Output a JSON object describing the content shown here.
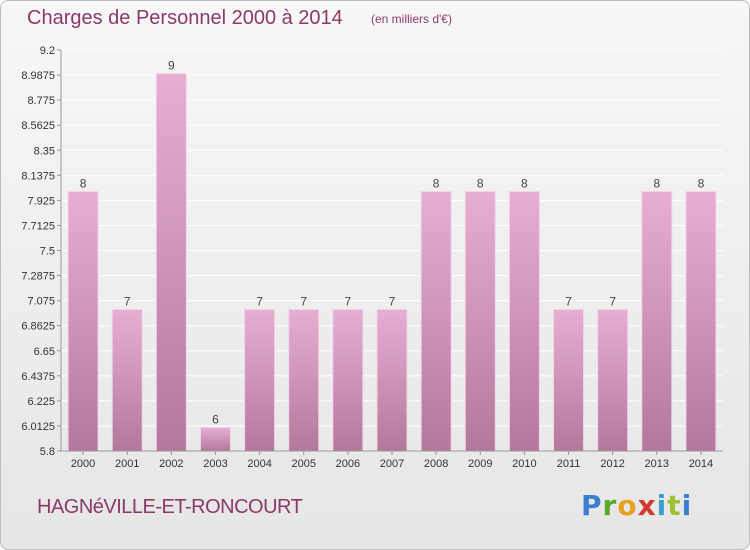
{
  "title": "Charges de Personnel 2000 à 2014",
  "subtitle": "(en milliers d'€)",
  "footer_name": "HAGNéVILLE-ET-RONCOURT",
  "brand": [
    "P",
    "r",
    "o",
    "x",
    "i",
    "t",
    "i"
  ],
  "colors": {
    "bar_top": "#e7aed4",
    "bar_bottom": "#b3789c",
    "text": "#8a3a6a",
    "grid": "#ffffff"
  },
  "chart_data": {
    "type": "bar",
    "categories": [
      "2000",
      "2001",
      "2002",
      "2003",
      "2004",
      "2005",
      "2006",
      "2007",
      "2008",
      "2009",
      "2010",
      "2011",
      "2012",
      "2013",
      "2014"
    ],
    "values": [
      8,
      7,
      9,
      6,
      7,
      7,
      7,
      7,
      8,
      8,
      8,
      7,
      7,
      8,
      8
    ],
    "ylim": [
      5.8,
      9.2
    ],
    "yticks": [
      "5.8",
      "6.0125",
      "6.225",
      "6.4375",
      "6.65",
      "6.8625",
      "7.075",
      "7.2875",
      "7.5",
      "7.7125",
      "7.925",
      "8.1375",
      "8.35",
      "8.5625",
      "8.775",
      "8.9875",
      "9.2"
    ],
    "grid": true,
    "title": "Charges de Personnel 2000 à 2014",
    "xlabel": "",
    "ylabel": ""
  }
}
